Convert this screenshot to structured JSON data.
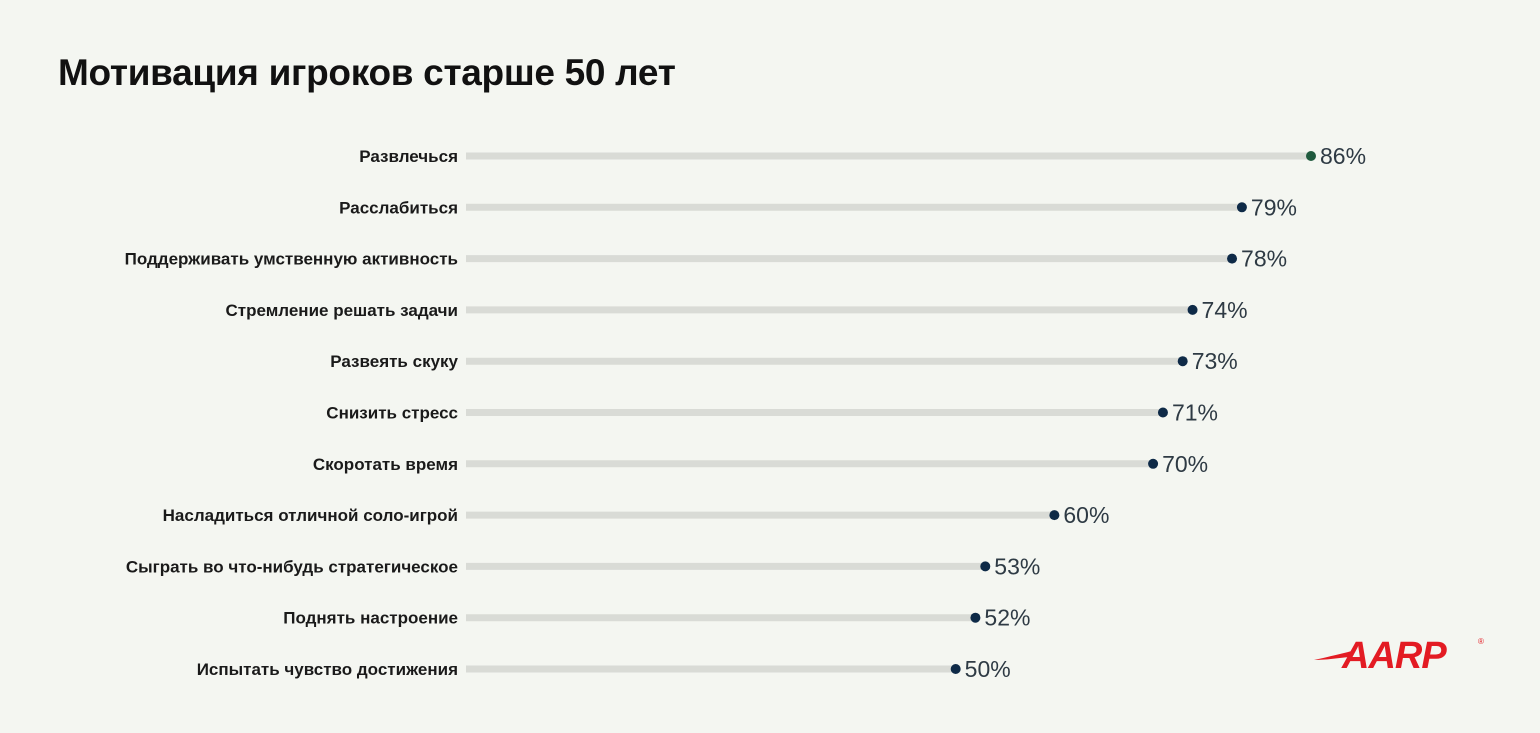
{
  "title": "Мотивация игроков старше 50 лет",
  "logo_text": "AARP",
  "colors": {
    "background": "#f4f6f1",
    "track": "#d9dbd6",
    "dot": "#0e2a47",
    "dot_top": "#1f5a3e",
    "logo": "#e31b23"
  },
  "chart_data": {
    "type": "dot",
    "title": "Мотивация игроков старше 50 лет",
    "value_suffix": "%",
    "xlim": [
      0,
      100
    ],
    "categories": [
      "Развлечься",
      "Расслабиться",
      "Поддерживать умственную активность",
      "Стремление решать задачи",
      "Развеять скуку",
      "Снизить стресс",
      "Скоротать время",
      "Насладиться отличной соло-игрой",
      "Сыграть во что-нибудь стратегическое",
      "Поднять настроение",
      "Испытать чувство достижения"
    ],
    "values": [
      86,
      79,
      78,
      74,
      73,
      71,
      70,
      60,
      53,
      52,
      50
    ]
  }
}
